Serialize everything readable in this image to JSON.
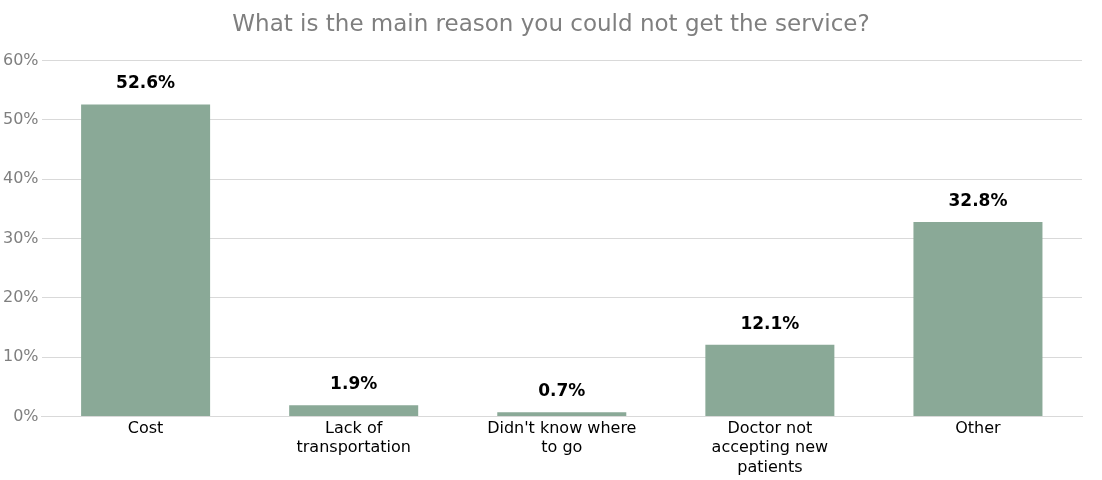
{
  "chart_data": {
    "type": "bar",
    "title": "What is the main reason you could not get the service?",
    "categories": [
      "Cost",
      "Lack of transportation",
      "Didn't know where to go",
      "Doctor not accepting new patients",
      "Other"
    ],
    "values": [
      52.6,
      1.9,
      0.7,
      12.1,
      32.8
    ],
    "value_labels": [
      "52.6%",
      "1.9%",
      "0.7%",
      "12.1%",
      "32.8%"
    ],
    "color": "#8aa997",
    "ylim": [
      0,
      60
    ],
    "yticks": [
      {
        "value": 0,
        "label": "0%"
      },
      {
        "value": 10,
        "label": "10%"
      },
      {
        "value": 20,
        "label": "20%"
      },
      {
        "value": 30,
        "label": "30%"
      },
      {
        "value": 40,
        "label": "40%"
      },
      {
        "value": 50,
        "label": "50%"
      },
      {
        "value": 60,
        "label": "60%"
      }
    ],
    "grid": "y",
    "legend": false
  }
}
